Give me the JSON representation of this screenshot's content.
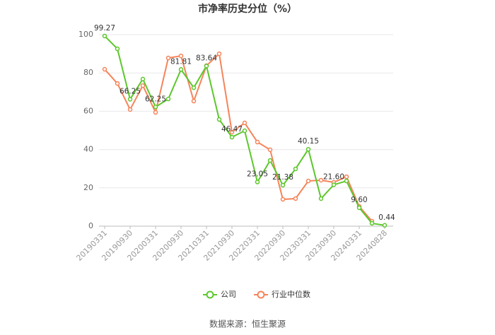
{
  "chart_data": {
    "type": "line",
    "title": "市净率历史分位（%）",
    "categories": [
      "20190331",
      null,
      "20190930",
      null,
      "20200331",
      null,
      "20200930",
      null,
      "20210331",
      null,
      "20210930",
      null,
      "20220331",
      null,
      "20220930",
      null,
      "20230331",
      null,
      "20230930",
      null,
      "20240331",
      null,
      "20240828"
    ],
    "series": [
      {
        "name": "公司",
        "color": "#5cc72c",
        "values": [
          99.27,
          92.6,
          66.25,
          76.8,
          62.25,
          66.4,
          81.81,
          72.3,
          83.64,
          55.7,
          46.47,
          49.8,
          23.05,
          34.3,
          21.38,
          29.9,
          40.15,
          14.4,
          21.6,
          23.6,
          9.6,
          1.5,
          0.44
        ],
        "value_labels": [
          "99.27",
          null,
          "66.25",
          null,
          "62.25",
          null,
          "81.81",
          null,
          "83.64",
          null,
          "46.47",
          null,
          "23.05",
          null,
          "21.38",
          null,
          "40.15",
          null,
          "21.60",
          null,
          "9.60",
          null,
          "0.44"
        ]
      },
      {
        "name": "行业中位数",
        "color": "#f5845a",
        "values": [
          81.9,
          74.5,
          60.9,
          73.4,
          59.4,
          87.8,
          88.9,
          65.3,
          83.8,
          90.0,
          49.1,
          53.9,
          43.9,
          39.9,
          14.0,
          14.4,
          23.6,
          24.0,
          22.9,
          25.8,
          10.3,
          2.6,
          null
        ]
      }
    ],
    "ylim": [
      0,
      100
    ],
    "yticks": [
      0,
      20,
      40,
      60,
      80,
      100
    ],
    "grid": true,
    "legend": "bottom",
    "source": "数据来源：恒生聚源"
  }
}
